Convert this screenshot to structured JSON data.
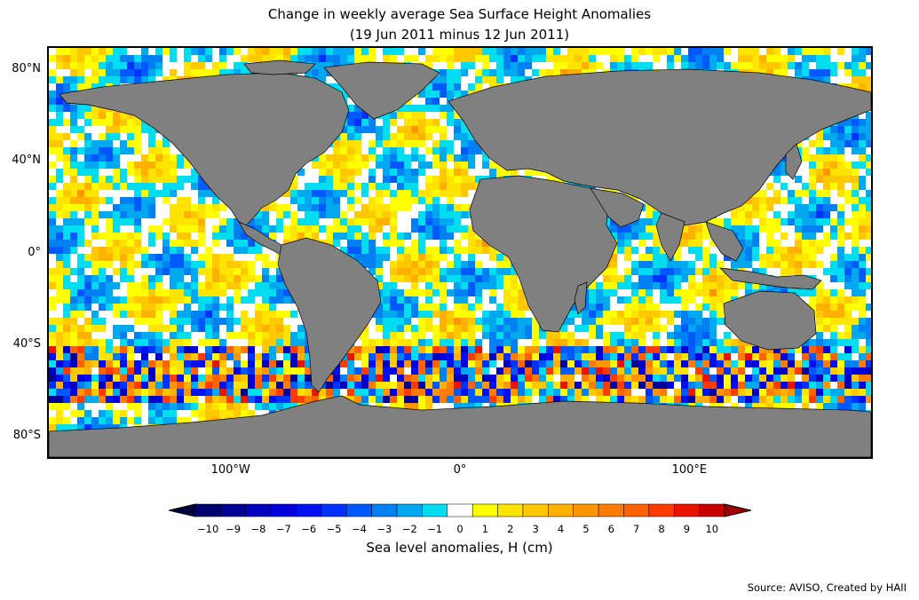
{
  "title": {
    "line1": "Change in weekly average Sea Surface Height Anomalies",
    "line2": "(19 Jun 2011 minus 12 Jun 2011)"
  },
  "map": {
    "projection": "equirectangular",
    "extent": {
      "lon": [
        -180,
        180
      ],
      "lat": [
        -90,
        90
      ]
    },
    "land_color": "#808080",
    "nodata_color": "#ffffff",
    "lat_ticks": [
      {
        "value": 80,
        "label": "80°N"
      },
      {
        "value": 40,
        "label": "40°N"
      },
      {
        "value": 0,
        "label": "0°"
      },
      {
        "value": -40,
        "label": "40°S"
      },
      {
        "value": -80,
        "label": "80°S"
      }
    ],
    "lon_ticks": [
      {
        "value": -100,
        "label": "100°W"
      },
      {
        "value": 0,
        "label": "0°"
      },
      {
        "value": 100,
        "label": "100°E"
      }
    ]
  },
  "colorbar": {
    "title": "Sea level anomalies, H (cm)",
    "min": -10,
    "max": 10,
    "extend": "both",
    "labels": [
      "−10",
      "−9",
      "−8",
      "−7",
      "−6",
      "−5",
      "−4",
      "−3",
      "−2",
      "−1",
      "0",
      "1",
      "2",
      "3",
      "4",
      "5",
      "6",
      "7",
      "8",
      "9",
      "10"
    ],
    "colors": [
      "#00006e",
      "#000096",
      "#0000be",
      "#0000dc",
      "#0010f0",
      "#0032ff",
      "#0058ff",
      "#0080f2",
      "#00a8f0",
      "#00dcf0",
      "#ffffff",
      "#ffff00",
      "#ffe400",
      "#ffc800",
      "#ffb000",
      "#ff9600",
      "#ff7c00",
      "#ff6200",
      "#ff3c00",
      "#e81400",
      "#c80000"
    ]
  },
  "source": "Source: AVISO, Created by HAII"
}
